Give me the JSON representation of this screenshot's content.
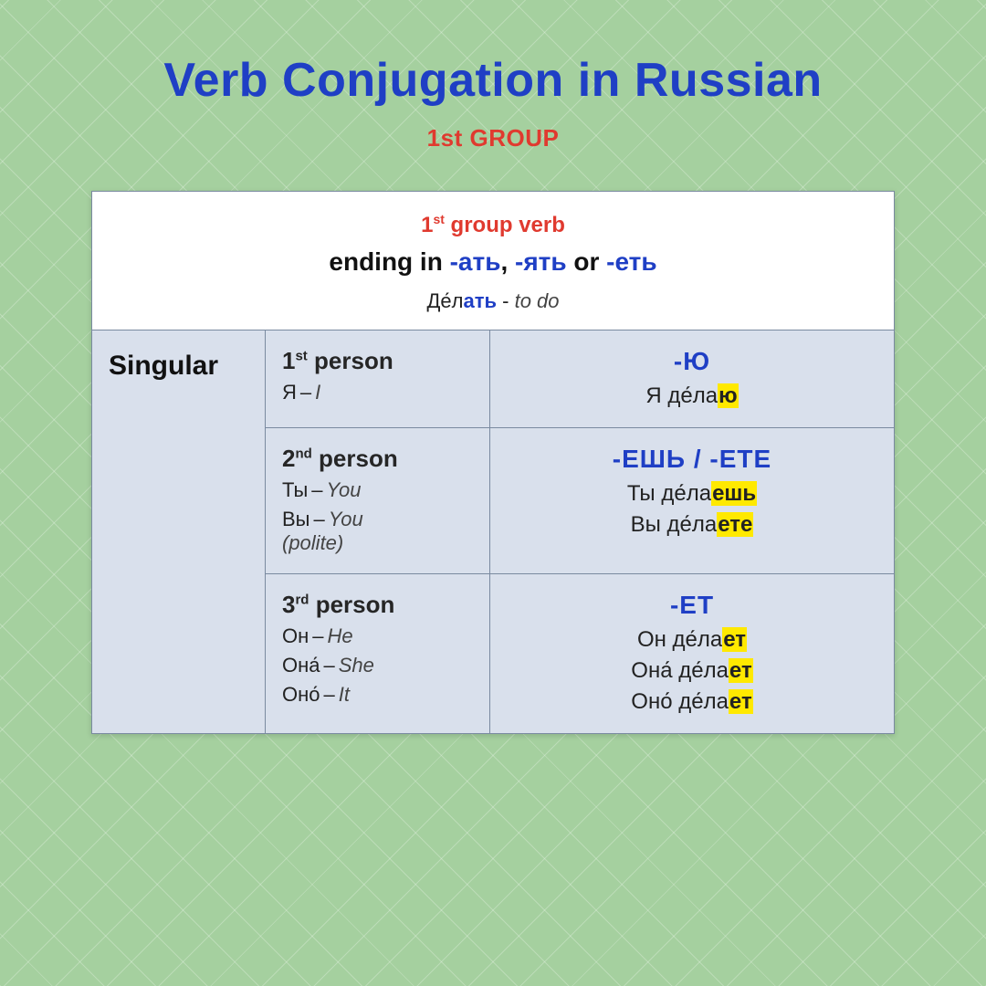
{
  "colors": {
    "page_bg": "#a5d09f",
    "title_blue": "#1f3fc5",
    "accent_red": "#e03a2f",
    "highlight_yellow": "#ffe900",
    "table_bg": "#d9e0ec",
    "border": "#7a8aa0",
    "text": "#222222"
  },
  "title": "Verb Conjugation in Russian",
  "subtitle": "1st GROUP",
  "header": {
    "line1_pre": "1",
    "line1_sup": "st",
    "line1_post": " group verb",
    "line2_plain": "ending in ",
    "line2_e1": "-ать",
    "line2_sep1": ", ",
    "line2_e2": "-ять",
    "line2_sep2": " or ",
    "line2_e3": "-еть",
    "line3_stem": "Де́л",
    "line3_suffix": "ать",
    "line3_dash": " - ",
    "line3_gloss": "to do"
  },
  "table": {
    "number_label": "Singular",
    "rows": [
      {
        "person_num": "1",
        "person_sup": "st",
        "person_word": " person",
        "pronouns": [
          {
            "ru": "Я",
            "en": "I"
          }
        ],
        "ending": "-Ю",
        "examples": [
          {
            "pre": "Я де́ла",
            "hl": "ю"
          }
        ]
      },
      {
        "person_num": "2",
        "person_sup": "nd",
        "person_word": " person",
        "pronouns": [
          {
            "ru": "Ты",
            "en": "You"
          },
          {
            "ru": "Вы",
            "en": "You",
            "note": "(polite)"
          }
        ],
        "ending": "-ЕШЬ / -ЕТЕ",
        "examples": [
          {
            "pre": "Ты де́ла",
            "hl": "ешь"
          },
          {
            "pre": "Вы де́ла",
            "hl": "ете"
          }
        ]
      },
      {
        "person_num": "3",
        "person_sup": "rd",
        "person_word": " person",
        "pronouns": [
          {
            "ru": "Он",
            "en": "He"
          },
          {
            "ru": "Она́",
            "en": "She"
          },
          {
            "ru": "Оно́",
            "en": "It"
          }
        ],
        "ending": "-ЕТ",
        "examples": [
          {
            "pre": "Он де́ла",
            "hl": "ет"
          },
          {
            "pre": "Она́ де́ла",
            "hl": "ет"
          },
          {
            "pre": "Оно́ де́ла",
            "hl": "ет"
          }
        ]
      }
    ]
  }
}
